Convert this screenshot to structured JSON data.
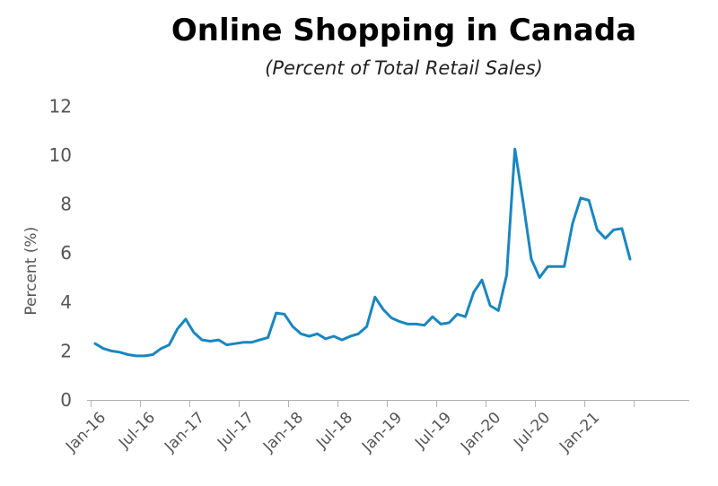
{
  "chart_data": {
    "type": "line",
    "title": "Online Shopping in Canada",
    "subtitle": "(Percent of Total Retail Sales)",
    "ylabel": "Percent (%)",
    "ylim": [
      0,
      12
    ],
    "yticks": [
      0,
      2,
      4,
      6,
      8,
      10,
      12
    ],
    "xtick_labels": [
      "Jan-16",
      "Jul-16",
      "Jan-17",
      "Jul-17",
      "Jan-18",
      "Jul-18",
      "Jan-19",
      "Jul-19",
      "Jan-20",
      "Jul-20",
      "Jan-21"
    ],
    "x_start": "Jan-16",
    "x_end": "Dec-21",
    "color": "#1a86c0",
    "series": [
      {
        "values": [
          2.3,
          2.1,
          2.0,
          1.95,
          1.85,
          1.8,
          1.8,
          1.85,
          2.1,
          2.25,
          2.9,
          3.3,
          2.75,
          2.45,
          2.4,
          2.45,
          2.25,
          2.3,
          2.35,
          2.35,
          2.45,
          2.55,
          3.55,
          3.5,
          3.0,
          2.7,
          2.6,
          2.7,
          2.5,
          2.6,
          2.45,
          2.6,
          2.7,
          3.0,
          4.2,
          3.7,
          3.35,
          3.2,
          3.1,
          3.1,
          3.05,
          3.4,
          3.1,
          3.15,
          3.5,
          3.4,
          4.4,
          4.9,
          3.85,
          3.65,
          5.1,
          10.25,
          8.1,
          5.75,
          5.0,
          5.45,
          5.45,
          5.45,
          7.2,
          8.25,
          8.15,
          6.95,
          6.6,
          6.95,
          7.0,
          5.75
        ]
      }
    ]
  }
}
